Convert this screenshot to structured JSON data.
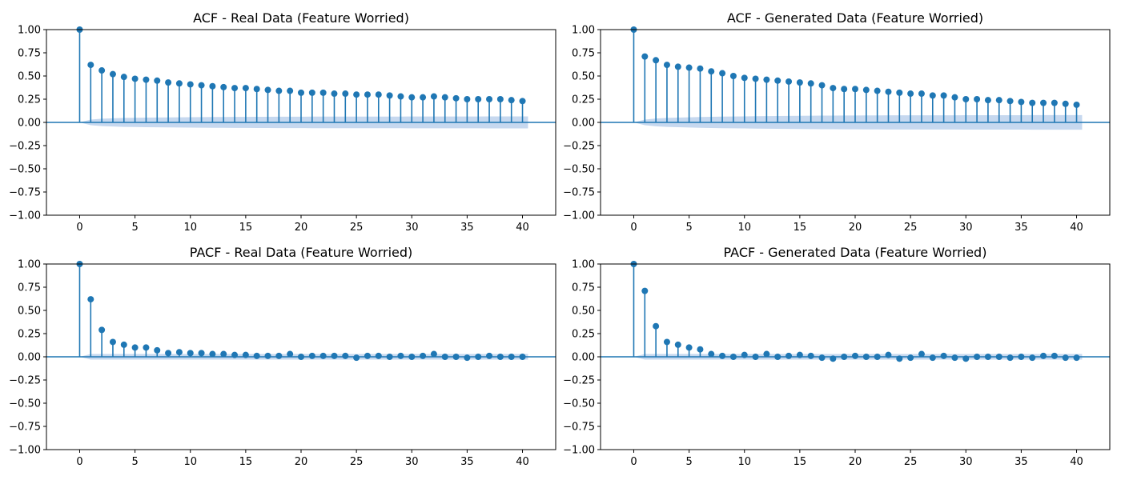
{
  "figure": {
    "marker_color": "#1f77b4",
    "band_color": "#aec7e8"
  },
  "chart_data": [
    {
      "type": "stem",
      "title": "ACF - Real Data (Feature Worried)",
      "xlabel": "",
      "ylabel": "",
      "xlim": [
        -3,
        43
      ],
      "ylim": [
        -1.0,
        1.0
      ],
      "xticks": [
        "0",
        "5",
        "10",
        "15",
        "20",
        "25",
        "30",
        "35",
        "40"
      ],
      "yticks": [
        "1.00",
        "0.75",
        "0.50",
        "0.25",
        "0.00",
        "−0.25",
        "−0.50",
        "−0.75",
        "−1.00"
      ],
      "confidence_band": true,
      "x": [
        0,
        1,
        2,
        3,
        4,
        5,
        6,
        7,
        8,
        9,
        10,
        11,
        12,
        13,
        14,
        15,
        16,
        17,
        18,
        19,
        20,
        21,
        22,
        23,
        24,
        25,
        26,
        27,
        28,
        29,
        30,
        31,
        32,
        33,
        34,
        35,
        36,
        37,
        38,
        39,
        40
      ],
      "values": [
        1.0,
        0.62,
        0.56,
        0.52,
        0.49,
        0.47,
        0.46,
        0.45,
        0.43,
        0.42,
        0.41,
        0.4,
        0.39,
        0.38,
        0.37,
        0.37,
        0.36,
        0.35,
        0.34,
        0.34,
        0.32,
        0.32,
        0.32,
        0.31,
        0.31,
        0.3,
        0.3,
        0.3,
        0.29,
        0.28,
        0.27,
        0.27,
        0.28,
        0.27,
        0.26,
        0.25,
        0.25,
        0.25,
        0.25,
        0.24,
        0.23
      ],
      "band": [
        0.0,
        0.03,
        0.04,
        0.044,
        0.048,
        0.05,
        0.052,
        0.053,
        0.054,
        0.055,
        0.056,
        0.057,
        0.058,
        0.058,
        0.059,
        0.059,
        0.06,
        0.06,
        0.061,
        0.061,
        0.061,
        0.062,
        0.062,
        0.062,
        0.062,
        0.063,
        0.063,
        0.063,
        0.063,
        0.063,
        0.064,
        0.064,
        0.064,
        0.064,
        0.064,
        0.064,
        0.064,
        0.065,
        0.065,
        0.065,
        0.065
      ]
    },
    {
      "type": "stem",
      "title": "ACF - Generated Data (Feature Worried)",
      "xlabel": "",
      "ylabel": "",
      "xlim": [
        -3,
        43
      ],
      "ylim": [
        -1.0,
        1.0
      ],
      "xticks": [
        "0",
        "5",
        "10",
        "15",
        "20",
        "25",
        "30",
        "35",
        "40"
      ],
      "yticks": [
        "1.00",
        "0.75",
        "0.50",
        "0.25",
        "0.00",
        "−0.25",
        "−0.50",
        "−0.75",
        "−1.00"
      ],
      "confidence_band": true,
      "x": [
        0,
        1,
        2,
        3,
        4,
        5,
        6,
        7,
        8,
        9,
        10,
        11,
        12,
        13,
        14,
        15,
        16,
        17,
        18,
        19,
        20,
        21,
        22,
        23,
        24,
        25,
        26,
        27,
        28,
        29,
        30,
        31,
        32,
        33,
        34,
        35,
        36,
        37,
        38,
        39,
        40
      ],
      "values": [
        1.0,
        0.71,
        0.67,
        0.62,
        0.6,
        0.59,
        0.58,
        0.55,
        0.53,
        0.5,
        0.48,
        0.47,
        0.46,
        0.45,
        0.44,
        0.43,
        0.42,
        0.4,
        0.37,
        0.36,
        0.36,
        0.35,
        0.34,
        0.33,
        0.32,
        0.31,
        0.31,
        0.29,
        0.29,
        0.27,
        0.25,
        0.25,
        0.24,
        0.24,
        0.23,
        0.22,
        0.21,
        0.21,
        0.21,
        0.2,
        0.19
      ],
      "band": [
        0.0,
        0.03,
        0.042,
        0.048,
        0.052,
        0.055,
        0.058,
        0.06,
        0.062,
        0.064,
        0.065,
        0.067,
        0.068,
        0.069,
        0.07,
        0.071,
        0.072,
        0.073,
        0.073,
        0.074,
        0.074,
        0.075,
        0.075,
        0.076,
        0.076,
        0.076,
        0.077,
        0.077,
        0.077,
        0.077,
        0.078,
        0.078,
        0.078,
        0.078,
        0.078,
        0.078,
        0.079,
        0.079,
        0.079,
        0.079,
        0.079
      ]
    },
    {
      "type": "stem",
      "title": "PACF - Real Data (Feature Worried)",
      "xlabel": "",
      "ylabel": "",
      "xlim": [
        -3,
        43
      ],
      "ylim": [
        -1.0,
        1.0
      ],
      "xticks": [
        "0",
        "5",
        "10",
        "15",
        "20",
        "25",
        "30",
        "35",
        "40"
      ],
      "yticks": [
        "1.00",
        "0.75",
        "0.50",
        "0.25",
        "0.00",
        "−0.25",
        "−0.50",
        "−0.75",
        "−1.00"
      ],
      "confidence_band": true,
      "x": [
        0,
        1,
        2,
        3,
        4,
        5,
        6,
        7,
        8,
        9,
        10,
        11,
        12,
        13,
        14,
        15,
        16,
        17,
        18,
        19,
        20,
        21,
        22,
        23,
        24,
        25,
        26,
        27,
        28,
        29,
        30,
        31,
        32,
        33,
        34,
        35,
        36,
        37,
        38,
        39,
        40
      ],
      "values": [
        1.0,
        0.62,
        0.29,
        0.16,
        0.13,
        0.1,
        0.1,
        0.07,
        0.04,
        0.05,
        0.04,
        0.04,
        0.03,
        0.03,
        0.02,
        0.02,
        0.01,
        0.01,
        0.01,
        0.03,
        0.0,
        0.01,
        0.01,
        0.01,
        0.01,
        -0.01,
        0.01,
        0.01,
        0.0,
        0.01,
        0.0,
        0.01,
        0.03,
        0.0,
        0.0,
        -0.01,
        0.0,
        0.01,
        0.0,
        0.0,
        0.0
      ],
      "band": [
        0.0,
        0.03,
        0.03,
        0.03,
        0.03,
        0.03,
        0.03,
        0.03,
        0.03,
        0.03,
        0.03,
        0.03,
        0.03,
        0.03,
        0.03,
        0.03,
        0.03,
        0.03,
        0.03,
        0.03,
        0.03,
        0.03,
        0.03,
        0.03,
        0.03,
        0.03,
        0.03,
        0.03,
        0.03,
        0.03,
        0.03,
        0.03,
        0.03,
        0.03,
        0.03,
        0.03,
        0.03,
        0.03,
        0.03,
        0.03,
        0.03
      ]
    },
    {
      "type": "stem",
      "title": "PACF - Generated Data (Feature Worried)",
      "xlabel": "",
      "ylabel": "",
      "xlim": [
        -3,
        43
      ],
      "ylim": [
        -1.0,
        1.0
      ],
      "xticks": [
        "0",
        "5",
        "10",
        "15",
        "20",
        "25",
        "30",
        "35",
        "40"
      ],
      "yticks": [
        "1.00",
        "0.75",
        "0.50",
        "0.25",
        "0.00",
        "−0.25",
        "−0.50",
        "−0.75",
        "−1.00"
      ],
      "confidence_band": true,
      "x": [
        0,
        1,
        2,
        3,
        4,
        5,
        6,
        7,
        8,
        9,
        10,
        11,
        12,
        13,
        14,
        15,
        16,
        17,
        18,
        19,
        20,
        21,
        22,
        23,
        24,
        25,
        26,
        27,
        28,
        29,
        30,
        31,
        32,
        33,
        34,
        35,
        36,
        37,
        38,
        39,
        40
      ],
      "values": [
        1.0,
        0.71,
        0.33,
        0.16,
        0.13,
        0.1,
        0.08,
        0.03,
        0.01,
        0.0,
        0.02,
        0.0,
        0.03,
        0.0,
        0.01,
        0.02,
        0.01,
        -0.01,
        -0.02,
        0.0,
        0.01,
        0.0,
        0.0,
        0.02,
        -0.02,
        -0.01,
        0.03,
        -0.01,
        0.01,
        -0.01,
        -0.02,
        0.0,
        0.0,
        0.0,
        -0.01,
        0.0,
        -0.01,
        0.01,
        0.01,
        -0.01,
        -0.01
      ],
      "band": [
        0.0,
        0.03,
        0.03,
        0.03,
        0.03,
        0.03,
        0.03,
        0.03,
        0.03,
        0.03,
        0.03,
        0.03,
        0.03,
        0.03,
        0.03,
        0.03,
        0.03,
        0.03,
        0.03,
        0.03,
        0.03,
        0.03,
        0.03,
        0.03,
        0.03,
        0.03,
        0.03,
        0.03,
        0.03,
        0.03,
        0.03,
        0.03,
        0.03,
        0.03,
        0.03,
        0.03,
        0.03,
        0.03,
        0.03,
        0.03,
        0.03
      ]
    }
  ]
}
